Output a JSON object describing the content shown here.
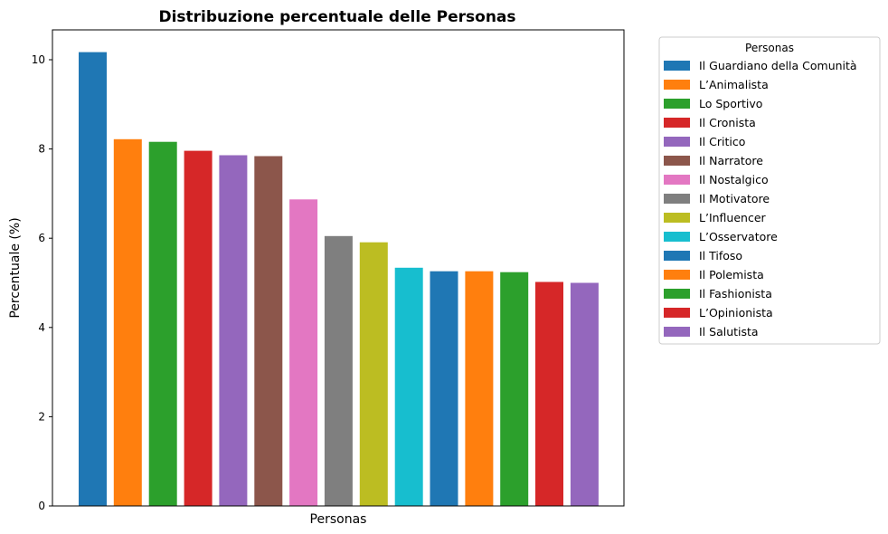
{
  "chart_data": {
    "type": "bar",
    "title": "Distribuzione percentuale delle Personas",
    "xlabel": "Personas",
    "ylabel": "Percentuale (%)",
    "ylim": [
      0,
      10.67
    ],
    "yticks": [
      0,
      2,
      4,
      6,
      8,
      10
    ],
    "grid": false,
    "legend": {
      "title": "Personas",
      "placement": "outside-top-right"
    },
    "categories": [
      "Il Guardiano della Comunità",
      "L’Animalista",
      "Lo Sportivo",
      "Il Cronista",
      "Il Critico",
      "Il Narratore",
      "Il Nostalgico",
      "Il Motivatore",
      "L’Influencer",
      "L’Osservatore",
      "Il Tifoso",
      "Il Polemista",
      "Il Fashionista",
      "L’Opinionista",
      "Il Salutista"
    ],
    "values": [
      10.17,
      8.22,
      8.16,
      7.96,
      7.86,
      7.84,
      6.87,
      6.05,
      5.91,
      5.34,
      5.26,
      5.26,
      5.24,
      5.02,
      5.0
    ],
    "colors": [
      "#1f77b4",
      "#ff7f0e",
      "#2ca02c",
      "#d62728",
      "#9467bd",
      "#8c564b",
      "#e377c2",
      "#7f7f7f",
      "#bcbd22",
      "#17becf",
      "#1f77b4",
      "#ff7f0e",
      "#2ca02c",
      "#d62728",
      "#9467bd"
    ]
  }
}
